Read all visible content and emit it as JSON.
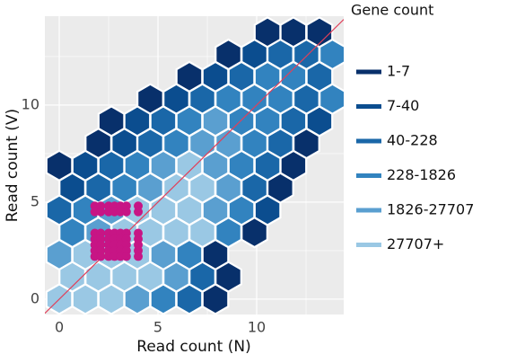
{
  "chart_data": {
    "type": "hexbin",
    "x_label": "Read count (N)",
    "y_label": "Read count (V)",
    "legend_title": "Gene count",
    "xlim": [
      -0.73,
      14.41
    ],
    "ylim": [
      -0.79,
      14.58
    ],
    "xticks": [
      0,
      5,
      10
    ],
    "yticks": [
      0,
      5,
      10
    ],
    "minor_xticks": [
      2.5,
      7.5,
      12.5
    ],
    "minor_yticks": [
      2.5,
      7.5,
      12.5
    ],
    "grid": true,
    "legend": "right",
    "series": [
      {
        "name": "1-7",
        "color": "#08306b",
        "x": [
          10.55,
          11.86,
          13.18,
          8.57,
          6.59,
          4.61,
          2.64,
          1.98,
          12.52,
          0,
          11.86,
          11.2,
          9.89,
          7.91,
          8.57,
          7.91
        ],
        "y": [
          13.75,
          13.75,
          13.75,
          12.61,
          11.46,
          10.31,
          9.17,
          8.02,
          8.02,
          6.88,
          6.88,
          5.73,
          3.44,
          2.29,
          1.15,
          0
        ]
      },
      {
        "name": "7-40",
        "color": "#0b4d8f",
        "x": [
          9.89,
          7.91,
          5.93,
          3.95,
          13.18,
          3.3,
          1.32,
          0.66,
          10.55
        ],
        "y": [
          12.61,
          11.46,
          10.31,
          9.17,
          9.17,
          8.02,
          6.88,
          5.73,
          4.58
        ]
      },
      {
        "name": "40-228",
        "color": "#1a67a8",
        "x": [
          11.2,
          12.52,
          9.23,
          13.18,
          7.25,
          12.52,
          5.27,
          11.86,
          4.61,
          11.2,
          2.64,
          10.55,
          1.98,
          9.89,
          0,
          7.25,
          6.59
        ],
        "y": [
          12.61,
          12.61,
          11.46,
          11.46,
          10.31,
          10.31,
          9.17,
          9.17,
          8.02,
          8.02,
          6.88,
          6.88,
          5.73,
          5.73,
          4.58,
          1.15,
          0
        ]
      },
      {
        "name": "228-1826",
        "color": "#3283bf",
        "x": [
          13.84,
          10.55,
          11.86,
          8.57,
          9.89,
          11.2,
          13.84,
          6.59,
          9.23,
          10.55,
          5.93,
          9.89,
          3.95,
          9.23,
          3.3,
          1.32,
          9.23,
          0.66,
          8.57,
          6.59,
          5.27
        ],
        "y": [
          12.61,
          11.46,
          11.46,
          10.31,
          10.31,
          10.31,
          10.31,
          9.17,
          9.17,
          9.17,
          8.02,
          8.02,
          6.88,
          6.88,
          5.73,
          4.58,
          4.58,
          3.44,
          3.44,
          2.29,
          0
        ]
      },
      {
        "name": "1826-27707",
        "color": "#5a9fd0",
        "x": [
          7.91,
          7.25,
          8.57,
          5.27,
          7.91,
          4.61,
          8.57,
          2.64,
          7.91,
          1.98,
          0,
          5.27,
          5.93,
          3.95
        ],
        "y": [
          9.17,
          8.02,
          8.02,
          6.88,
          6.88,
          5.73,
          5.73,
          4.58,
          4.58,
          3.44,
          2.29,
          2.29,
          1.15,
          0
        ]
      },
      {
        "name": "27707+",
        "color": "#9ac8e4",
        "x": [
          6.59,
          5.93,
          7.25,
          3.95,
          5.27,
          6.59,
          3.3,
          4.61,
          5.93,
          7.25,
          1.32,
          2.64,
          3.95,
          0.66,
          1.98,
          3.3,
          4.61,
          0,
          1.32,
          2.64
        ],
        "y": [
          6.88,
          5.73,
          5.73,
          4.58,
          4.58,
          4.58,
          3.44,
          3.44,
          3.44,
          3.44,
          2.29,
          2.29,
          2.29,
          1.15,
          1.15,
          1.15,
          1.15,
          0,
          0,
          0
        ]
      }
    ],
    "points": {
      "color": "#c71585",
      "x": [
        1.8,
        2.1,
        2.5,
        2.8,
        3.1,
        3.4,
        4.0,
        1.8,
        2.1,
        2.5,
        2.8,
        3.1,
        3.4,
        4.0,
        1.8,
        2.1,
        2.5,
        2.8,
        3.1,
        3.4,
        4.0,
        1.8,
        2.1,
        2.5,
        2.8,
        3.1,
        3.4,
        4.0,
        1.8,
        2.1,
        2.5,
        2.8,
        3.1,
        3.4,
        4.0,
        1.8,
        2.1,
        2.5,
        2.8,
        3.1,
        3.4,
        4.0,
        1.8,
        2.1,
        2.5,
        2.8,
        3.1,
        3.4,
        4.0
      ],
      "y": [
        4.8,
        4.8,
        4.8,
        4.8,
        4.8,
        4.8,
        4.8,
        4.5,
        4.5,
        4.5,
        4.5,
        4.5,
        4.5,
        4.5,
        3.4,
        3.4,
        3.4,
        3.4,
        3.4,
        3.4,
        3.4,
        3.1,
        3.1,
        3.1,
        3.1,
        3.1,
        3.1,
        3.1,
        2.8,
        2.8,
        2.8,
        2.8,
        2.8,
        2.8,
        2.8,
        2.5,
        2.5,
        2.5,
        2.5,
        2.5,
        2.5,
        2.5,
        2.2,
        2.2,
        2.2,
        2.2,
        2.2,
        2.2,
        2.2
      ]
    },
    "reference_line": {
      "slope": 1,
      "intercept": 0,
      "color": "#e0405a"
    }
  }
}
